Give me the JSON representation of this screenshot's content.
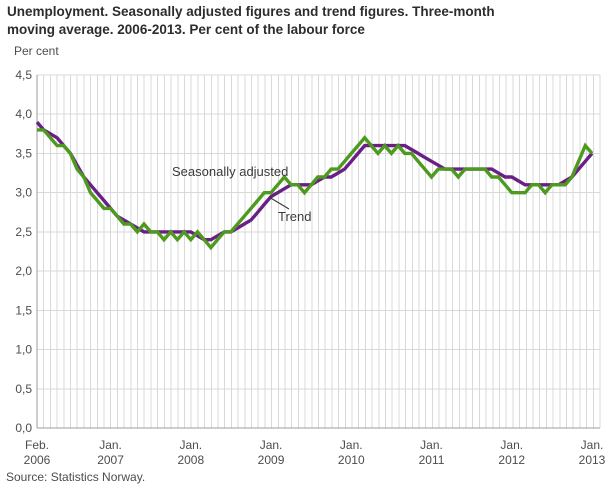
{
  "title": {
    "line1": "Unemployment. Seasonally adjusted figures and trend figures. Three-month",
    "line2": "moving average. 2006-2013. Per cent of the labour force"
  },
  "source": "Source: Statistics Norway.",
  "chart_data": {
    "type": "line",
    "title": "Unemployment. Seasonally adjusted figures and trend figures. Three-month moving average. 2006-2013. Per cent of the labour force",
    "ylabel": "Per cent",
    "xlabel": "",
    "ylim": [
      0,
      4.5
    ],
    "ytick_step": 0.5,
    "grid": true,
    "legend_position": "inline-annotations",
    "x_start": "2006-02",
    "x_freq": "monthly",
    "n_points": 84,
    "y_tick_labels": [
      "4,5",
      "4,0",
      "3,5",
      "3,0",
      "2,5",
      "2,0",
      "1,5",
      "1,0",
      "0,5",
      "0,0"
    ],
    "x_ticks": [
      {
        "month": "Feb.",
        "year": "2006",
        "index": 0
      },
      {
        "month": "Jan.",
        "year": "2007",
        "index": 11
      },
      {
        "month": "Jan.",
        "year": "2008",
        "index": 23
      },
      {
        "month": "Jan.",
        "year": "2009",
        "index": 35
      },
      {
        "month": "Jan.",
        "year": "2010",
        "index": 47
      },
      {
        "month": "Jan.",
        "year": "2011",
        "index": 59
      },
      {
        "month": "Jan.",
        "year": "2012",
        "index": 71
      },
      {
        "month": "Jan.",
        "year": "2013",
        "index": 83
      }
    ],
    "series": [
      {
        "name": "Trend",
        "color": "#6a1f87",
        "values": [
          3.9,
          3.8,
          3.75,
          3.7,
          3.6,
          3.5,
          3.35,
          3.2,
          3.1,
          3.0,
          2.9,
          2.8,
          2.7,
          2.65,
          2.6,
          2.55,
          2.5,
          2.5,
          2.5,
          2.5,
          2.5,
          2.5,
          2.5,
          2.5,
          2.45,
          2.4,
          2.4,
          2.45,
          2.5,
          2.5,
          2.55,
          2.6,
          2.65,
          2.75,
          2.85,
          2.95,
          3.0,
          3.05,
          3.1,
          3.1,
          3.1,
          3.1,
          3.15,
          3.2,
          3.2,
          3.25,
          3.3,
          3.4,
          3.5,
          3.6,
          3.6,
          3.6,
          3.6,
          3.6,
          3.6,
          3.6,
          3.55,
          3.5,
          3.45,
          3.4,
          3.35,
          3.3,
          3.3,
          3.3,
          3.3,
          3.3,
          3.3,
          3.3,
          3.3,
          3.25,
          3.2,
          3.2,
          3.15,
          3.1,
          3.1,
          3.1,
          3.1,
          3.1,
          3.1,
          3.15,
          3.2,
          3.3,
          3.4,
          3.5
        ]
      },
      {
        "name": "Seasonally adjusted",
        "color": "#4e9a1e",
        "values": [
          3.8,
          3.8,
          3.7,
          3.6,
          3.6,
          3.5,
          3.3,
          3.2,
          3.0,
          2.9,
          2.8,
          2.8,
          2.7,
          2.6,
          2.6,
          2.5,
          2.6,
          2.5,
          2.5,
          2.4,
          2.5,
          2.4,
          2.5,
          2.4,
          2.5,
          2.4,
          2.3,
          2.4,
          2.5,
          2.5,
          2.6,
          2.7,
          2.8,
          2.9,
          3.0,
          3.0,
          3.1,
          3.2,
          3.1,
          3.1,
          3.0,
          3.1,
          3.2,
          3.2,
          3.3,
          3.3,
          3.4,
          3.5,
          3.6,
          3.7,
          3.6,
          3.5,
          3.6,
          3.5,
          3.6,
          3.5,
          3.5,
          3.4,
          3.3,
          3.2,
          3.3,
          3.3,
          3.3,
          3.2,
          3.3,
          3.3,
          3.3,
          3.3,
          3.2,
          3.2,
          3.1,
          3.0,
          3.0,
          3.0,
          3.1,
          3.1,
          3.0,
          3.1,
          3.1,
          3.1,
          3.2,
          3.4,
          3.6,
          3.5
        ]
      }
    ],
    "annotations": [
      {
        "text": "Seasonally adjusted",
        "x": 172,
        "y": 176
      },
      {
        "text": "Trend",
        "x": 278,
        "y": 221,
        "leader": [
          269,
          197,
          289,
          209
        ]
      }
    ],
    "colors": {
      "grid": "#d9d9d9",
      "axis": "#9e9e9e",
      "text": "#4d4d4d"
    }
  }
}
